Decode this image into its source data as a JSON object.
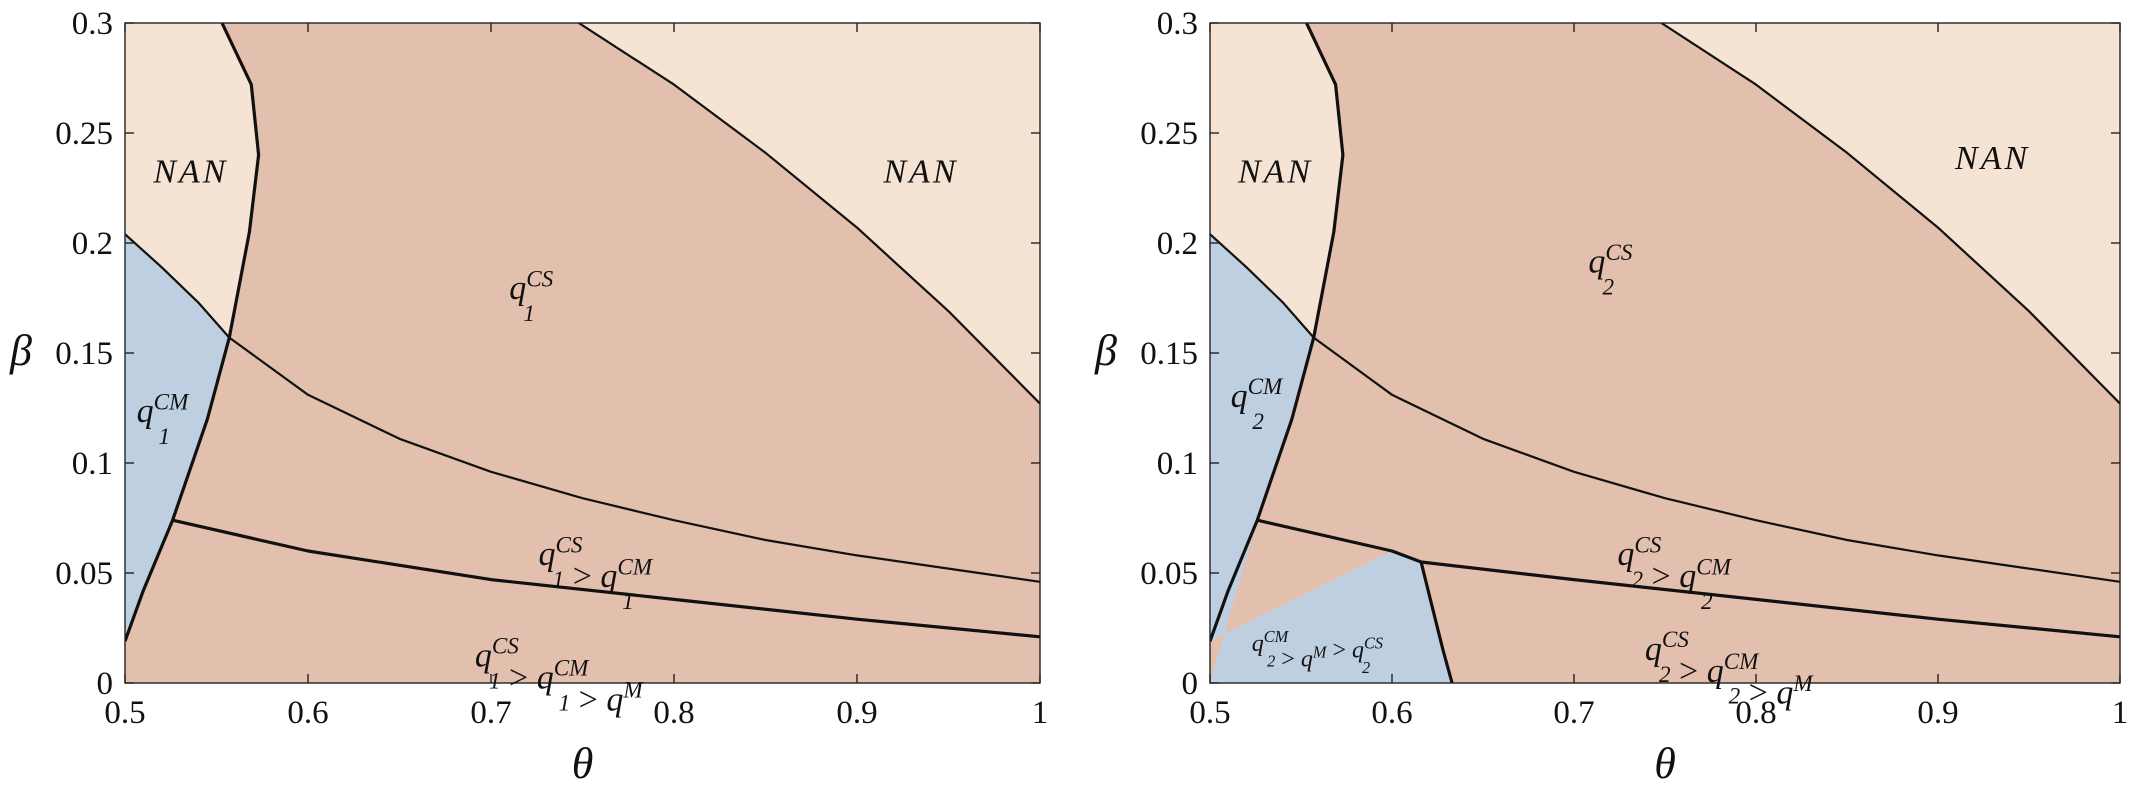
{
  "chart_data": [
    {
      "type": "area",
      "id": "panel-left",
      "xlabel": "θ",
      "ylabel": "β",
      "xlim": [
        0.5,
        1.0
      ],
      "ylim": [
        0,
        0.3
      ],
      "xticks": [
        "0.5",
        "0.6",
        "0.7",
        "0.8",
        "0.9",
        "1"
      ],
      "yticks": [
        "0",
        "0.05",
        "0.1",
        "0.15",
        "0.2",
        "0.25",
        "0.3"
      ],
      "region_colors": {
        "nan": "#f5e3d3",
        "cs": "#e3c0ae",
        "cm": "#bfcfe2"
      },
      "boundaries": [
        {
          "name": "feasibility-left",
          "points": [
            [
              0.5,
              0.204
            ],
            [
              0.52,
              0.189
            ],
            [
              0.54,
              0.173
            ],
            [
              0.557,
              0.157
            ]
          ]
        },
        {
          "name": "cm-cs-curve",
          "points": [
            [
              0.5,
              0.019
            ],
            [
              0.51,
              0.042
            ],
            [
              0.526,
              0.074
            ],
            [
              0.545,
              0.12
            ],
            [
              0.557,
              0.157
            ],
            [
              0.568,
              0.205
            ],
            [
              0.573,
              0.24
            ],
            [
              0.569,
              0.272
            ],
            [
              0.553,
              0.3
            ]
          ]
        },
        {
          "name": "feasibility-upper",
          "points": [
            [
              0.748,
              0.3
            ],
            [
              0.8,
              0.272
            ],
            [
              0.85,
              0.241
            ],
            [
              0.9,
              0.207
            ],
            [
              0.95,
              0.169
            ],
            [
              1.0,
              0.127
            ]
          ]
        },
        {
          "name": "threshold-upper",
          "points": [
            [
              0.557,
              0.157
            ],
            [
              0.6,
              0.131
            ],
            [
              0.65,
              0.111
            ],
            [
              0.7,
              0.096
            ],
            [
              0.75,
              0.084
            ],
            [
              0.8,
              0.074
            ],
            [
              0.85,
              0.065
            ],
            [
              0.9,
              0.058
            ],
            [
              0.95,
              0.052
            ],
            [
              1.0,
              0.046
            ]
          ]
        },
        {
          "name": "threshold-lower",
          "points": [
            [
              0.526,
              0.074
            ],
            [
              0.6,
              0.06
            ],
            [
              0.7,
              0.047
            ],
            [
              0.8,
              0.038
            ],
            [
              0.9,
              0.029
            ],
            [
              1.0,
              0.021
            ]
          ]
        }
      ],
      "annotations": [
        {
          "name": "nan-left",
          "text": "NAN",
          "x": 0.536,
          "y": 0.233
        },
        {
          "name": "nan-right",
          "text": "NAN",
          "x": 0.935,
          "y": 0.233
        },
        {
          "name": "q-cs",
          "base": "q",
          "sub": "1",
          "sup": "CS",
          "x": 0.722,
          "y": 0.18
        },
        {
          "name": "q-cm",
          "base": "q",
          "sub": "1",
          "sup": "CM",
          "x": 0.5205,
          "y": 0.124
        },
        {
          "name": "q-cs-gt-cm",
          "parts": [
            {
              "base": "q",
              "sub": "1",
              "sup": "CS"
            },
            {
              "op": " > "
            },
            {
              "base": "q",
              "sub": "1",
              "sup": "CM"
            }
          ],
          "x": 0.757,
          "y": 0.059
        },
        {
          "name": "q-cs-gt-cm-gt-m",
          "parts": [
            {
              "base": "q",
              "sub": "1",
              "sup": "CS"
            },
            {
              "op": " > "
            },
            {
              "base": "q",
              "sub": "1",
              "sup": "CM"
            },
            {
              "op": " > "
            },
            {
              "base": "q",
              "sub": "",
              "sup": "M"
            }
          ],
          "x": 0.737,
          "y": 0.013
        }
      ]
    },
    {
      "type": "area",
      "id": "panel-right",
      "xlabel": "θ",
      "ylabel": "β",
      "xlim": [
        0.5,
        1.0
      ],
      "ylim": [
        0,
        0.3
      ],
      "xticks": [
        "0.5",
        "0.6",
        "0.7",
        "0.8",
        "0.9",
        "1"
      ],
      "yticks": [
        "0",
        "0.05",
        "0.1",
        "0.15",
        "0.2",
        "0.25",
        "0.3"
      ],
      "region_colors": {
        "nan": "#f5e3d3",
        "cs": "#e3c0ae",
        "cm": "#bfcfe2"
      },
      "boundaries": [
        {
          "name": "feasibility-left",
          "points": [
            [
              0.5,
              0.204
            ],
            [
              0.52,
              0.189
            ],
            [
              0.54,
              0.173
            ],
            [
              0.557,
              0.157
            ]
          ]
        },
        {
          "name": "cm-cs-curve",
          "points": [
            [
              0.5,
              0.019
            ],
            [
              0.51,
              0.042
            ],
            [
              0.526,
              0.074
            ],
            [
              0.545,
              0.12
            ],
            [
              0.557,
              0.157
            ],
            [
              0.568,
              0.205
            ],
            [
              0.573,
              0.24
            ],
            [
              0.569,
              0.272
            ],
            [
              0.553,
              0.3
            ]
          ]
        },
        {
          "name": "feasibility-upper",
          "points": [
            [
              0.748,
              0.3
            ],
            [
              0.8,
              0.272
            ],
            [
              0.85,
              0.241
            ],
            [
              0.9,
              0.207
            ],
            [
              0.95,
              0.169
            ],
            [
              1.0,
              0.127
            ]
          ]
        },
        {
          "name": "threshold-upper",
          "points": [
            [
              0.557,
              0.157
            ],
            [
              0.6,
              0.131
            ],
            [
              0.65,
              0.111
            ],
            [
              0.7,
              0.096
            ],
            [
              0.75,
              0.084
            ],
            [
              0.8,
              0.074
            ],
            [
              0.85,
              0.065
            ],
            [
              0.9,
              0.058
            ],
            [
              0.95,
              0.052
            ],
            [
              1.0,
              0.046
            ]
          ]
        },
        {
          "name": "threshold-lower",
          "points": [
            [
              0.526,
              0.074
            ],
            [
              0.6,
              0.06
            ],
            [
              0.616,
              0.055
            ],
            [
              0.7,
              0.047
            ],
            [
              0.8,
              0.038
            ],
            [
              0.9,
              0.029
            ],
            [
              1.0,
              0.021
            ]
          ]
        },
        {
          "name": "cm-m-boundary",
          "points": [
            [
              0.616,
              0.055
            ],
            [
              0.622,
              0.035
            ],
            [
              0.628,
              0.015
            ],
            [
              0.633,
              0.0
            ]
          ]
        }
      ],
      "annotations": [
        {
          "name": "nan-left",
          "text": "NAN",
          "x": 0.536,
          "y": 0.233
        },
        {
          "name": "nan-right",
          "text": "NAN",
          "x": 0.93,
          "y": 0.239
        },
        {
          "name": "q-cs",
          "base": "q",
          "sub": "2",
          "sup": "CS",
          "x": 0.72,
          "y": 0.192
        },
        {
          "name": "q-cm",
          "base": "q",
          "sub": "2",
          "sup": "CM",
          "x": 0.5255,
          "y": 0.131
        },
        {
          "name": "q-cs-gt-cm",
          "parts": [
            {
              "base": "q",
              "sub": "2",
              "sup": "CS"
            },
            {
              "op": " > "
            },
            {
              "base": "q",
              "sub": "2",
              "sup": "CM"
            }
          ],
          "x": 0.755,
          "y": 0.059
        },
        {
          "name": "q-cm-gt-m-gt-cs",
          "small": true,
          "parts": [
            {
              "base": "q",
              "sub": "2",
              "sup": "CM"
            },
            {
              "op": " > "
            },
            {
              "base": "q",
              "sub": "",
              "sup": "M"
            },
            {
              "op": " > "
            },
            {
              "base": "q",
              "sub": "2",
              "sup": "CS"
            }
          ],
          "x": 0.559,
          "y": 0.02
        },
        {
          "name": "q-cs-gt-cm-gt-m",
          "parts": [
            {
              "base": "q",
              "sub": "2",
              "sup": "CS"
            },
            {
              "op": " > "
            },
            {
              "base": "q",
              "sub": "2",
              "sup": "CM"
            },
            {
              "op": " > "
            },
            {
              "base": "q",
              "sub": "",
              "sup": "M"
            }
          ],
          "x": 0.785,
          "y": 0.016
        }
      ]
    }
  ]
}
